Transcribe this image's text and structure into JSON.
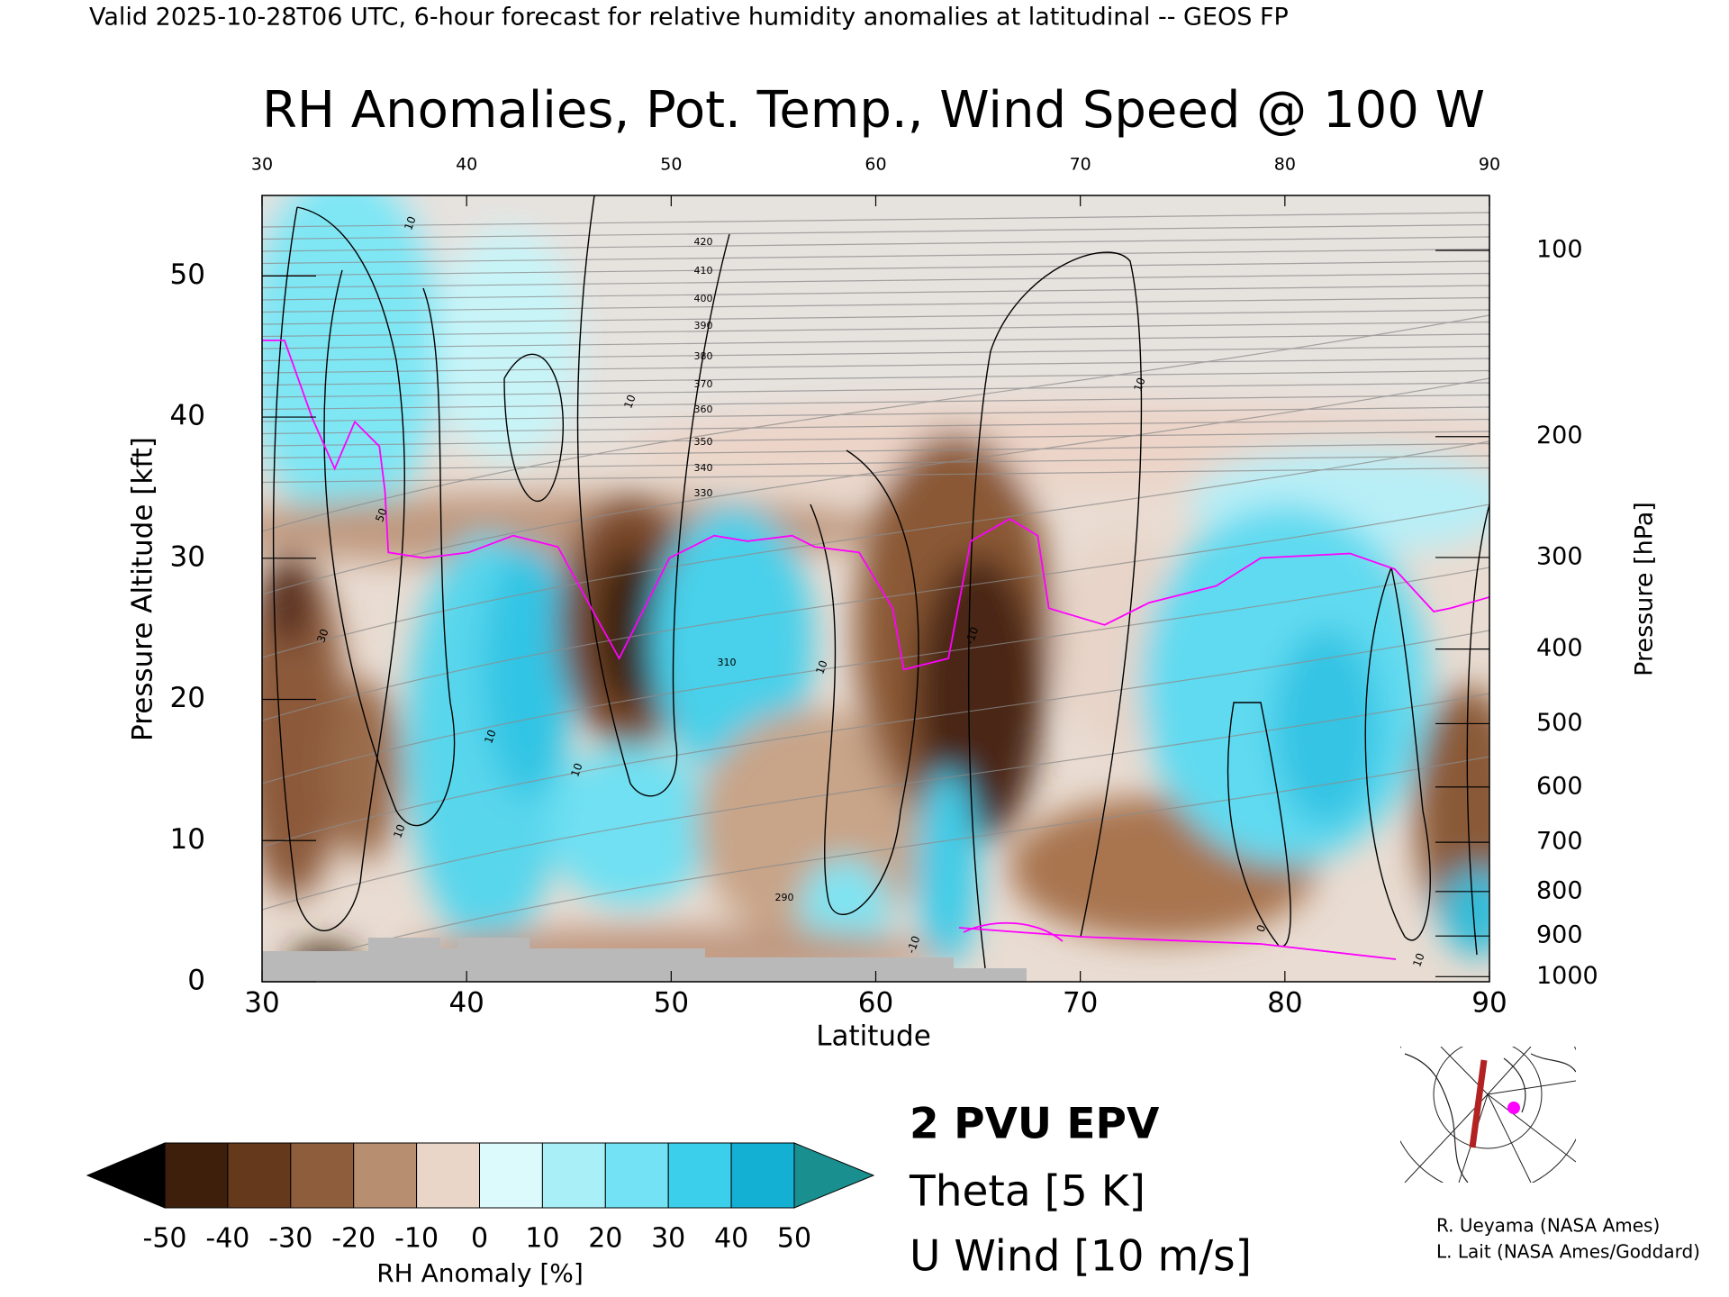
{
  "header": {
    "title": "Valid 2025-10-28T06 UTC, 6-hour forecast for relative humidity anomalies at latitudinal -- GEOS FP"
  },
  "chart_data": {
    "type": "cross-section",
    "title": "RH Anomalies, Pot. Temp., Wind Speed @ 100 W",
    "x_label": "Latitude",
    "y_label": "Pressure Altitude [kft]",
    "y2_label": "Pressure [hPa]",
    "xlim": [
      30,
      90
    ],
    "xticks": [
      30,
      40,
      50,
      60,
      70,
      80,
      90
    ],
    "ylim": [
      0,
      55.7
    ],
    "yticks": [
      0,
      10,
      20,
      30,
      40,
      50
    ],
    "y2lim": [
      1013.25,
      80
    ],
    "y2ticks": [
      100,
      200,
      300,
      400,
      500,
      600,
      700,
      800,
      900,
      1000
    ],
    "legend": [
      {
        "name": "2 PVU EPV",
        "color": "#ff00ff"
      },
      {
        "name": "Theta [5 K]",
        "color": "#b4b4b4"
      },
      {
        "name": "U Wind [10 m/s]",
        "color": "#000000"
      }
    ],
    "colorbar": {
      "label": "RH Anomaly [%]",
      "lim": [
        -50,
        50
      ],
      "ticks": [
        -50,
        -40,
        -30,
        -20,
        -10,
        0,
        10,
        20,
        30,
        40,
        50
      ],
      "colors": [
        "#3d1f0c",
        "#64391c",
        "#8e5e3c",
        "#b88e70",
        "#ead6c8",
        "#dcfafc",
        "#a8eff8",
        "#72e2f4",
        "#3ccfeb",
        "#14b0d4"
      ],
      "under_color": "#000000",
      "over_color": "#1a8f8f"
    },
    "theta_labels": [
      420,
      410,
      400,
      390,
      380,
      370,
      360,
      350,
      340,
      330,
      310,
      290
    ],
    "wind_labels": [
      10,
      10,
      10,
      50,
      30,
      10,
      10,
      10,
      -10,
      10,
      -10,
      10,
      0
    ]
  },
  "credits": [
    "R. Ueyama (NASA Ames)",
    "L. Lait (NASA Ames/Goddard)"
  ]
}
